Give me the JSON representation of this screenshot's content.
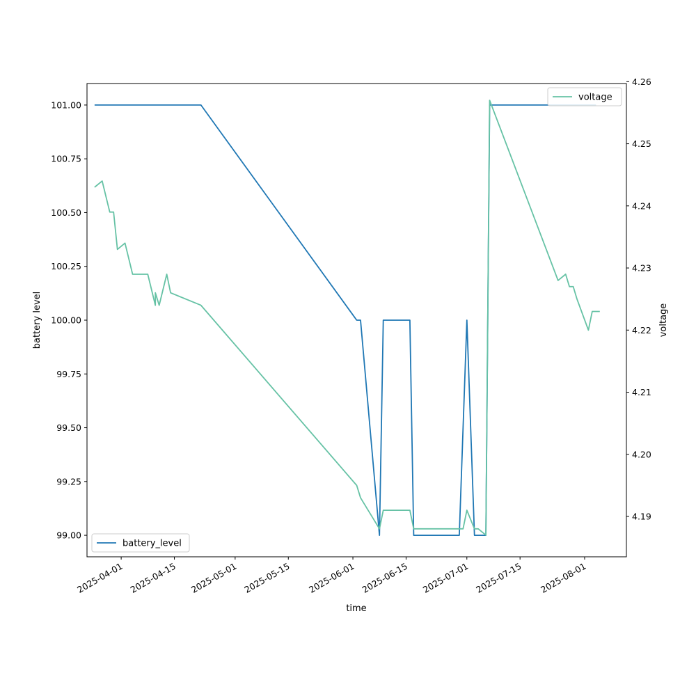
{
  "chart_data": {
    "type": "line",
    "xlabel": "time",
    "ylabel_left": "battery level",
    "ylabel_right": "voltage",
    "x_ticks": [
      "2025-04-01",
      "2025-04-15",
      "2025-05-01",
      "2025-05-15",
      "2025-06-01",
      "2025-06-15",
      "2025-07-01",
      "2025-07-15",
      "2025-08-01"
    ],
    "xlim": [
      "2025-03-23",
      "2025-08-12"
    ],
    "ylim_left": [
      98.9,
      101.1
    ],
    "y_ticks_left": [
      "99.00",
      "99.25",
      "99.50",
      "99.75",
      "100.00",
      "100.25",
      "100.50",
      "100.75",
      "101.00"
    ],
    "ylim_right": [
      4.1835,
      4.2597
    ],
    "y_ticks_right": [
      "4.19",
      "4.20",
      "4.21",
      "4.22",
      "4.23",
      "4.24",
      "4.25",
      "4.26"
    ],
    "grid": false,
    "series": [
      {
        "name": "battery_level",
        "axis": "left",
        "color": "#1f77b4",
        "legend_position": "lower-left",
        "points": [
          [
            "2025-03-25",
            101
          ],
          [
            "2025-04-22",
            101
          ],
          [
            "2025-06-02",
            100
          ],
          [
            "2025-06-03",
            100
          ],
          [
            "2025-06-08",
            99
          ],
          [
            "2025-06-08",
            99
          ],
          [
            "2025-06-09",
            100
          ],
          [
            "2025-06-16",
            100
          ],
          [
            "2025-06-17",
            99
          ],
          [
            "2025-06-29",
            99
          ],
          [
            "2025-07-01",
            100
          ],
          [
            "2025-07-03",
            99
          ],
          [
            "2025-07-06",
            99
          ],
          [
            "2025-07-07",
            101
          ],
          [
            "2025-08-04",
            101
          ]
        ]
      },
      {
        "name": "voltage",
        "axis": "right",
        "color": "#66c2a5",
        "legend_position": "upper-right",
        "points": [
          [
            "2025-03-25",
            4.243
          ],
          [
            "2025-03-27",
            4.244
          ],
          [
            "2025-03-29",
            4.239
          ],
          [
            "2025-03-30",
            4.239
          ],
          [
            "2025-03-31",
            4.233
          ],
          [
            "2025-04-02",
            4.234
          ],
          [
            "2025-04-04",
            4.229
          ],
          [
            "2025-04-08",
            4.229
          ],
          [
            "2025-04-10",
            4.224
          ],
          [
            "2025-04-10",
            4.226
          ],
          [
            "2025-04-11",
            4.224
          ],
          [
            "2025-04-13",
            4.229
          ],
          [
            "2025-04-14",
            4.226
          ],
          [
            "2025-04-22",
            4.224
          ],
          [
            "2025-06-02",
            4.195
          ],
          [
            "2025-06-03",
            4.193
          ],
          [
            "2025-06-08",
            4.188
          ],
          [
            "2025-06-09",
            4.191
          ],
          [
            "2025-06-16",
            4.191
          ],
          [
            "2025-06-17",
            4.188
          ],
          [
            "2025-06-30",
            4.188
          ],
          [
            "2025-07-01",
            4.191
          ],
          [
            "2025-07-03",
            4.188
          ],
          [
            "2025-07-04",
            4.188
          ],
          [
            "2025-07-06",
            4.187
          ],
          [
            "2025-07-07",
            4.257
          ],
          [
            "2025-07-25",
            4.228
          ],
          [
            "2025-07-27",
            4.229
          ],
          [
            "2025-07-28",
            4.227
          ],
          [
            "2025-07-29",
            4.227
          ],
          [
            "2025-07-30",
            4.225
          ],
          [
            "2025-08-02",
            4.22
          ],
          [
            "2025-08-03",
            4.223
          ],
          [
            "2025-08-05",
            4.223
          ]
        ]
      }
    ]
  }
}
